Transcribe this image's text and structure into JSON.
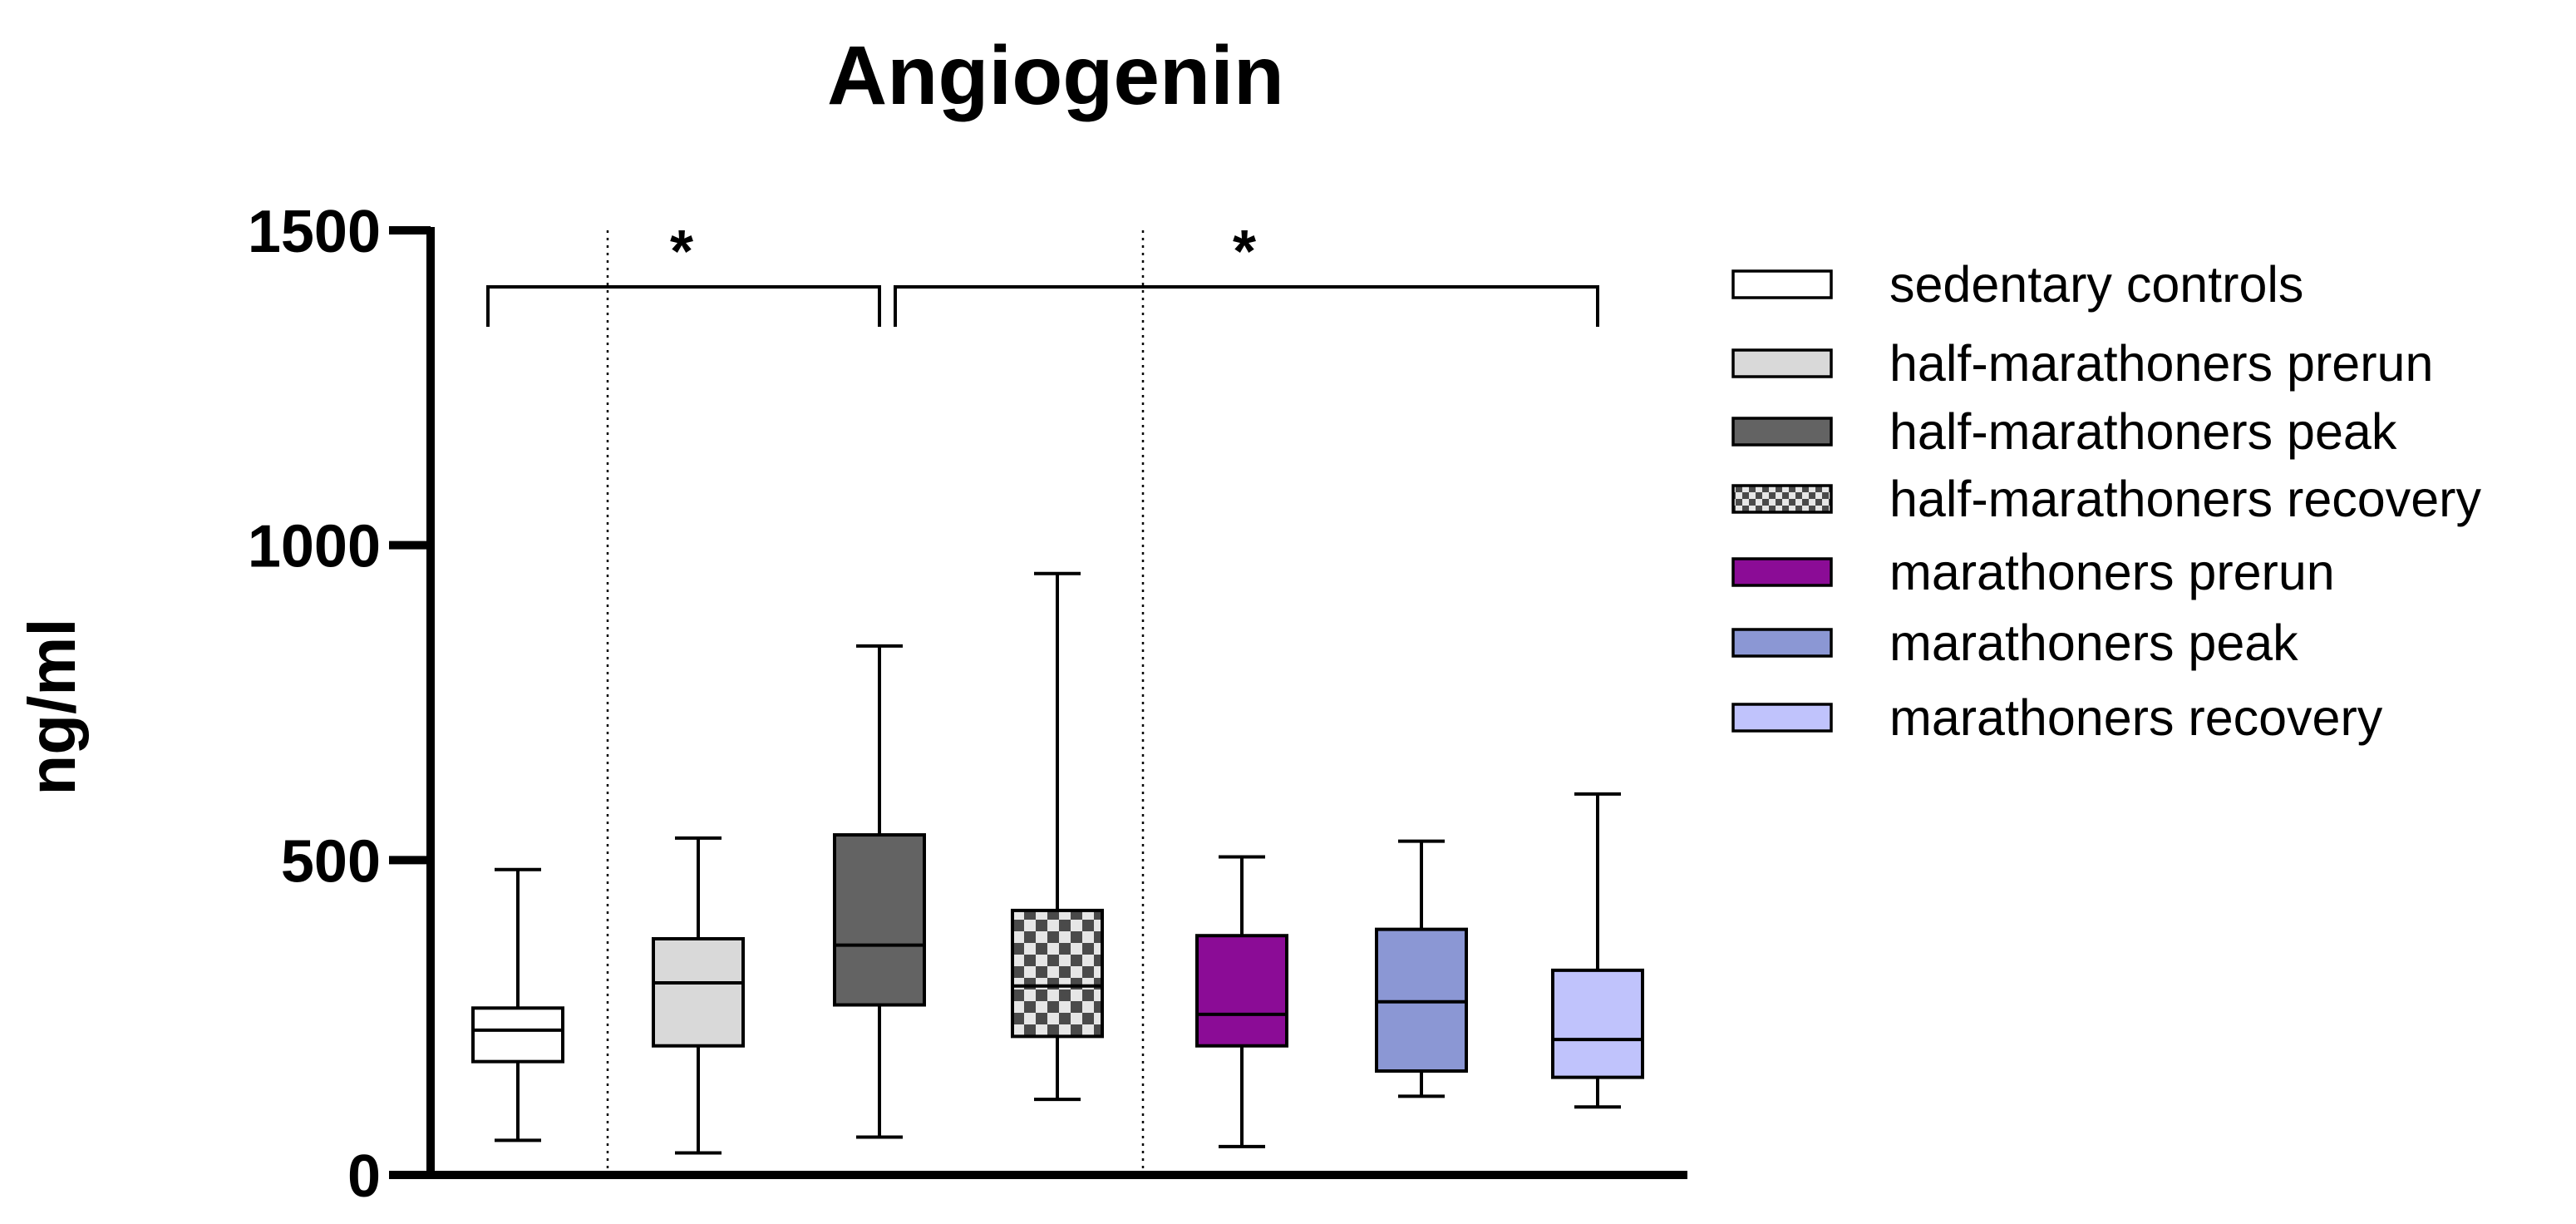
{
  "chart_data": {
    "type": "box",
    "title": "Angiogenin",
    "xlabel": "",
    "ylabel": "ng/ml",
    "ylim": [
      0,
      1500
    ],
    "yticks": [
      "0",
      "500",
      "1000",
      "1500"
    ],
    "grid": false,
    "legend_position": "right",
    "groups": [
      {
        "name": "sedentary controls",
        "color": "#ffffff",
        "pattern": "none",
        "min": 55,
        "q1": 180,
        "median": 230,
        "q3": 265,
        "max": 485
      },
      {
        "name": "half-marathoners prerun",
        "color": "#d9d9d9",
        "pattern": "none",
        "min": 35,
        "q1": 205,
        "median": 305,
        "q3": 375,
        "max": 535
      },
      {
        "name": "half-marathoners peak",
        "color": "#636363",
        "pattern": "none",
        "min": 60,
        "q1": 270,
        "median": 365,
        "q3": 540,
        "max": 840
      },
      {
        "name": "half-marathoners recovery",
        "color": "#9a9a9a",
        "pattern": "checker",
        "min": 120,
        "q1": 220,
        "median": 300,
        "q3": 420,
        "max": 955
      },
      {
        "name": "marathoners prerun",
        "color": "#8b0c96",
        "pattern": "none",
        "min": 45,
        "q1": 205,
        "median": 255,
        "q3": 380,
        "max": 505
      },
      {
        "name": "marathoners peak",
        "color": "#8b97d4",
        "pattern": "none",
        "min": 125,
        "q1": 165,
        "median": 275,
        "q3": 390,
        "max": 530
      },
      {
        "name": "marathoners recovery",
        "color": "#c0c3fc",
        "pattern": "none",
        "min": 108,
        "q1": 155,
        "median": 215,
        "q3": 325,
        "max": 605
      }
    ],
    "significance": [
      {
        "from_group": 0,
        "to_group": 2,
        "label": "*",
        "bracket_value": 1410
      },
      {
        "from_group": 2,
        "to_group": 6,
        "label": "*",
        "bracket_value": 1410
      }
    ],
    "separators_after_groups": [
      0,
      3
    ]
  }
}
